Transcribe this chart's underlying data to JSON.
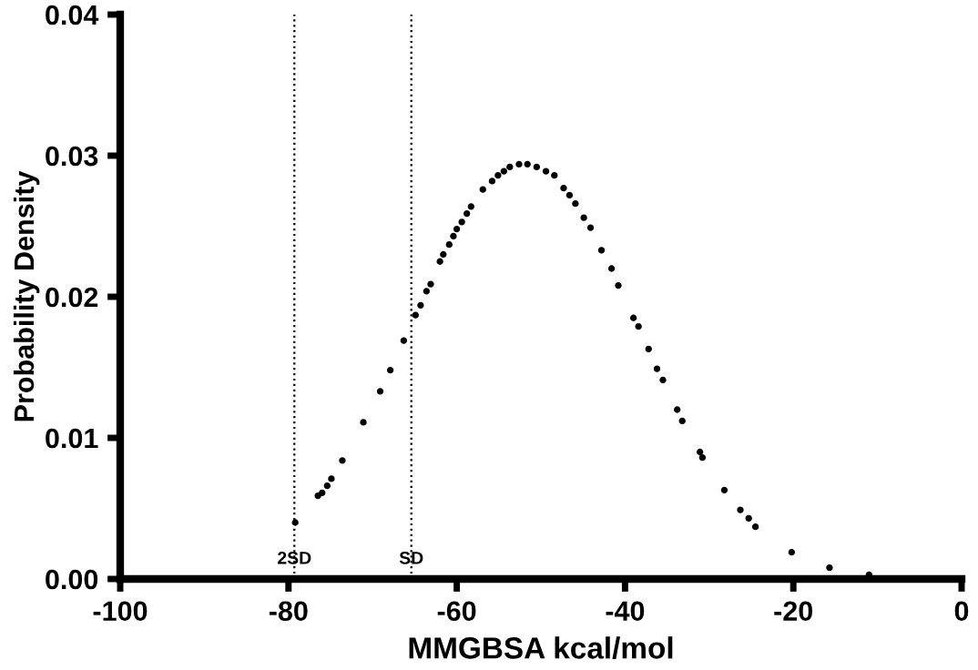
{
  "chart_data": {
    "type": "scatter",
    "xlabel": "MMGBSA kcal/mol",
    "ylabel": "Probability Density",
    "x": [
      -79.2,
      -76.5,
      -76.0,
      -75.4,
      -74.9,
      -73.6,
      -71.1,
      -69.1,
      -67.9,
      -66.3,
      -64.9,
      -64.3,
      -63.6,
      -63.1,
      -62.0,
      -61.6,
      -60.9,
      -60.4,
      -60.0,
      -59.4,
      -58.8,
      -58.3,
      -56.9,
      -55.8,
      -55.1,
      -54.4,
      -53.7,
      -52.6,
      -51.6,
      -50.5,
      -49.4,
      -48.4,
      -47.3,
      -46.6,
      -45.9,
      -44.9,
      -44.1,
      -42.8,
      -41.6,
      -40.8,
      -39.0,
      -38.4,
      -37.2,
      -36.2,
      -35.5,
      -33.8,
      -33.2,
      -31.1,
      -30.8,
      -28.2,
      -26.3,
      -25.3,
      -24.5,
      -20.2,
      -15.7,
      -11.0
    ],
    "series": [
      {
        "color": "#000000",
        "values": [
          0.004,
          0.0059,
          0.0061,
          0.0066,
          0.0071,
          0.0084,
          0.0111,
          0.0133,
          0.0148,
          0.0169,
          0.0187,
          0.0194,
          0.0204,
          0.0209,
          0.0225,
          0.023,
          0.0237,
          0.0243,
          0.0248,
          0.0253,
          0.0259,
          0.0264,
          0.0276,
          0.0282,
          0.0286,
          0.0289,
          0.0292,
          0.0294,
          0.0294,
          0.0292,
          0.0289,
          0.0286,
          0.0277,
          0.0272,
          0.0266,
          0.0256,
          0.0249,
          0.0233,
          0.022,
          0.0208,
          0.0185,
          0.0179,
          0.0163,
          0.0149,
          0.0141,
          0.012,
          0.0112,
          0.009,
          0.0086,
          0.0063,
          0.0049,
          0.0043,
          0.0037,
          0.0019,
          0.0008,
          0.0003
        ]
      }
    ],
    "xlim": [
      -100,
      0
    ],
    "xticks": [
      -100,
      -80,
      -60,
      -40,
      -20,
      0
    ],
    "ylim": [
      0,
      0.04
    ],
    "yticks": [
      {
        "value": 0,
        "label": "0.00"
      },
      {
        "value": 0.01,
        "label": "0.01"
      },
      {
        "value": 0.02,
        "label": "0.02"
      },
      {
        "value": 0.03,
        "label": "0.03"
      },
      {
        "value": 0.04,
        "label": "0.04"
      }
    ],
    "ref_lines": [
      {
        "axis": "x",
        "value": -79.3,
        "label": "2SD",
        "line_style": "dotted",
        "color": "#000000"
      },
      {
        "axis": "x",
        "value": -65.4,
        "label": "SD",
        "line_style": "dotted",
        "color": "#000000"
      }
    ],
    "marker": "circle",
    "grid": false
  }
}
